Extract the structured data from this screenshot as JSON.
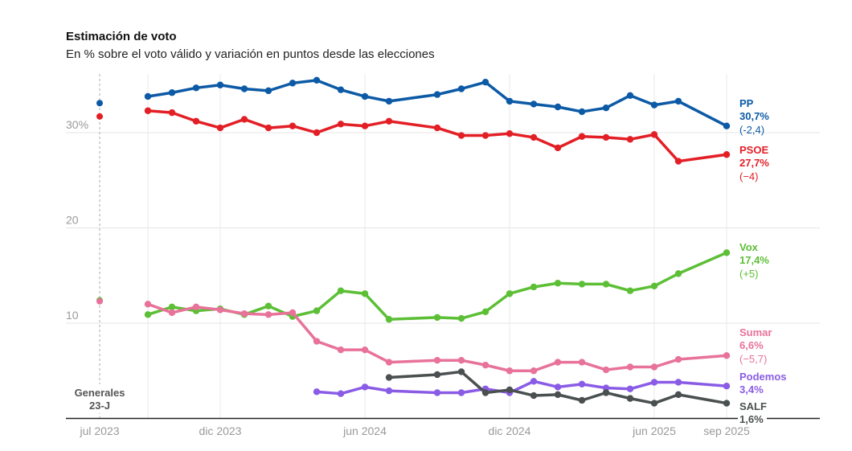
{
  "chart_data": {
    "type": "line",
    "title": "Estimación de voto",
    "subtitle": "En % sobre el voto válido y variación en puntos desde las elecciones",
    "ylim": [
      0,
      37
    ],
    "yticks": [
      {
        "value": 10,
        "label": "10"
      },
      {
        "value": 20,
        "label": "20"
      },
      {
        "value": 30,
        "label": "30%"
      }
    ],
    "xticks": [
      {
        "date": "2023-07",
        "label": "jul 2023"
      },
      {
        "date": "2023-12",
        "label": "dic 2023"
      },
      {
        "date": "2024-06",
        "label": "jun 2024"
      },
      {
        "date": "2024-12",
        "label": "dic 2024"
      },
      {
        "date": "2025-06",
        "label": "jun 2025"
      },
      {
        "date": "2025-09",
        "label": "sep 2025"
      }
    ],
    "grid": true,
    "annotation": {
      "date": "2023-07",
      "lines": [
        "Generales",
        "23-J"
      ]
    },
    "x": [
      "2023-09",
      "2023-10",
      "2023-11",
      "2023-12",
      "2024-01",
      "2024-02",
      "2024-03",
      "2024-04",
      "2024-05",
      "2024-06",
      "2024-07",
      "2024-09",
      "2024-10",
      "2024-11",
      "2024-12",
      "2025-01",
      "2025-02",
      "2025-03",
      "2025-04",
      "2025-05",
      "2025-06",
      "2025-07",
      "2025-09"
    ],
    "series": [
      {
        "name": "PP",
        "color": "#0c5aa6",
        "election": 33.1,
        "last_label": "30,7%",
        "change": "(-2,4)",
        "values": [
          33.8,
          34.2,
          34.7,
          35.0,
          34.6,
          34.4,
          35.2,
          35.5,
          34.5,
          33.8,
          33.3,
          34.0,
          34.6,
          35.3,
          33.3,
          33.0,
          32.7,
          32.2,
          32.6,
          33.9,
          32.9,
          33.3,
          30.7
        ]
      },
      {
        "name": "PSOE",
        "color": "#e31f26",
        "election": 31.7,
        "last_label": "27,7%",
        "change": "(−4)",
        "values": [
          32.3,
          32.1,
          31.2,
          30.5,
          31.4,
          30.5,
          30.7,
          30.0,
          30.9,
          30.7,
          31.2,
          30.5,
          29.7,
          29.7,
          29.9,
          29.5,
          28.4,
          29.6,
          29.5,
          29.3,
          29.8,
          27.0,
          27.7
        ]
      },
      {
        "name": "Vox",
        "color": "#5cbf36",
        "election": 12.4,
        "last_label": "17,4%",
        "change": "(+5)",
        "values": [
          10.9,
          11.7,
          11.3,
          11.5,
          10.9,
          11.8,
          10.7,
          11.3,
          13.4,
          13.1,
          10.4,
          10.6,
          10.5,
          11.2,
          13.1,
          13.8,
          14.2,
          14.1,
          14.1,
          13.4,
          13.9,
          15.2,
          17.4
        ]
      },
      {
        "name": "Sumar",
        "color": "#e8729a",
        "election": 12.3,
        "last_label": "6,6%",
        "change": "(−5,7)",
        "values": [
          12.0,
          11.1,
          11.7,
          11.4,
          11.0,
          10.9,
          11.1,
          8.1,
          7.2,
          7.2,
          5.9,
          6.1,
          6.1,
          5.6,
          5.0,
          5.0,
          5.9,
          5.9,
          5.1,
          5.4,
          5.4,
          6.2,
          6.6
        ]
      },
      {
        "name": "Podemos",
        "color": "#8a5ce6",
        "election": null,
        "last_label": "3,4%",
        "change": "",
        "values": [
          null,
          null,
          null,
          null,
          null,
          null,
          null,
          2.8,
          2.6,
          3.3,
          2.9,
          2.7,
          2.7,
          3.1,
          2.7,
          3.9,
          3.3,
          3.6,
          3.2,
          3.1,
          3.8,
          3.8,
          3.4
        ]
      },
      {
        "name": "SALF",
        "color": "#4a4f4f",
        "election": null,
        "last_label": "1,6%",
        "change": "",
        "values": [
          null,
          null,
          null,
          null,
          null,
          null,
          null,
          null,
          null,
          null,
          4.3,
          4.6,
          4.9,
          2.7,
          3.0,
          2.4,
          2.5,
          1.9,
          2.7,
          2.1,
          1.6,
          2.5,
          1.6
        ]
      }
    ]
  }
}
